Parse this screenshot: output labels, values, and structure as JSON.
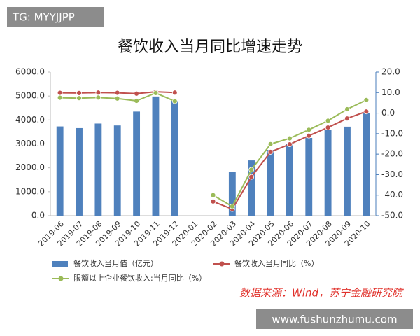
{
  "chart_data": {
    "type": "bar-line",
    "title": "餐饮收入当月同比增速走势",
    "categories": [
      "2019-06",
      "2019-07",
      "2019-08",
      "2019-09",
      "2019-10",
      "2019-11",
      "2019-12",
      "2020-01",
      "2020-02",
      "2020-03",
      "2020-04",
      "2020-05",
      "2020-06",
      "2020-07",
      "2020-08",
      "2020-09",
      "2020-10"
    ],
    "series": [
      {
        "name": "餐饮收入当月值（亿元）",
        "type": "bar",
        "color": "#4f81bd",
        "values": [
          3730,
          3660,
          3850,
          3770,
          4350,
          4980,
          4800,
          null,
          null,
          1830,
          2310,
          2750,
          3000,
          3250,
          3600,
          3720,
          4300
        ]
      },
      {
        "name": "餐饮收入当月同比（%）",
        "type": "line",
        "axis": "y2",
        "color": "#c0504d",
        "values": [
          9.9,
          9.8,
          10.0,
          9.9,
          9.5,
          10.4,
          10.0,
          null,
          -43.1,
          -46.8,
          -31.1,
          -18.9,
          -15.2,
          -11.0,
          -7.0,
          -2.6,
          0.8
        ]
      },
      {
        "name": "限额以上企业餐饮收入:当月同比（%）",
        "type": "line",
        "axis": "y2",
        "color": "#9bbb59",
        "values": [
          7.5,
          7.3,
          7.6,
          7.1,
          6.0,
          9.8,
          5.8,
          null,
          -40.0,
          -45.5,
          -27.6,
          -15.1,
          -12.3,
          -8.1,
          -3.7,
          1.9,
          6.4
        ]
      }
    ],
    "ylim": [
      0,
      6000
    ],
    "yticks": [
      {
        "value": 0,
        "label": "0.0"
      },
      {
        "value": 1000,
        "label": "1000.0"
      },
      {
        "value": 2000,
        "label": "2000.0"
      },
      {
        "value": 3000,
        "label": "3000.0"
      },
      {
        "value": 4000,
        "label": "4000.0"
      },
      {
        "value": 5000,
        "label": "5000.0"
      },
      {
        "value": 6000,
        "label": "6000.0"
      }
    ],
    "y2lim": [
      -50,
      20
    ],
    "y2ticks": [
      {
        "value": -50,
        "label": "-50.0"
      },
      {
        "value": -40,
        "label": "-40.0"
      },
      {
        "value": -30,
        "label": "-30.0"
      },
      {
        "value": -20,
        "label": "-20.0"
      },
      {
        "value": -10,
        "label": "-10.0"
      },
      {
        "value": 0,
        "label": "0.0"
      },
      {
        "value": 10,
        "label": "10.0"
      },
      {
        "value": 20,
        "label": "20.0"
      }
    ],
    "grid": false,
    "legend": "bottom",
    "source": "数据来源：Wind，苏宁金融研究院"
  },
  "overlay": {
    "tag": "TG: MYYJJPP",
    "watermark": "www.fushunzhumu.com"
  }
}
